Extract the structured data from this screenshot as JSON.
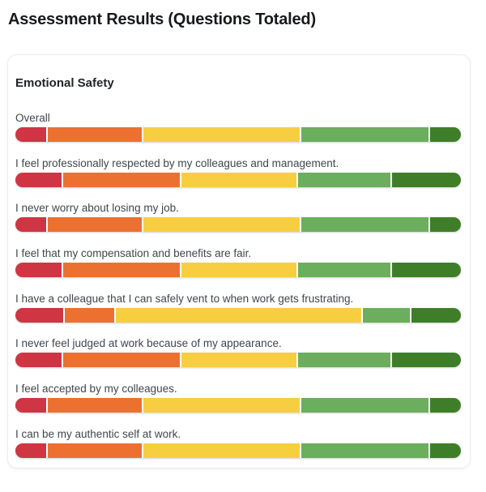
{
  "page_title": "Assessment Results (Questions Totaled)",
  "card": {
    "section_title": "Emotional Safety"
  },
  "chart_data": {
    "type": "bar",
    "variant": "horizontal-stacked-percentage",
    "title": "Assessment Results (Questions Totaled)",
    "group_label": "Emotional Safety",
    "legend_position": "none",
    "axis_labels": "none",
    "segment_keys": [
      "lowest",
      "low",
      "medium",
      "high",
      "highest"
    ],
    "colors": [
      "#cf3542",
      "#ec7131",
      "#f6ce40",
      "#6aae5e",
      "#3e7e28"
    ],
    "rows": [
      {
        "label": "Overall",
        "values_pct": [
          7.0,
          21.4,
          35.7,
          28.9,
          7.0
        ]
      },
      {
        "label": "I feel professionally respected by my colleagues and management.",
        "values_pct": [
          10.5,
          26.5,
          26.2,
          21.2,
          15.6
        ]
      },
      {
        "label": "I never worry about losing my job.",
        "values_pct": [
          7.0,
          21.4,
          35.7,
          28.9,
          7.0
        ]
      },
      {
        "label": "I feel that my compensation and benefits are fair.",
        "values_pct": [
          10.5,
          26.5,
          26.2,
          21.2,
          15.6
        ]
      },
      {
        "label": "I have a colleague that I can safely vent to when work gets frustrating.",
        "values_pct": [
          10.8,
          11.4,
          55.8,
          10.8,
          11.2
        ]
      },
      {
        "label": "I never feel judged at work because of my appearance.",
        "values_pct": [
          10.5,
          26.5,
          26.2,
          21.2,
          15.6
        ]
      },
      {
        "label": "I feel accepted by my colleagues.",
        "values_pct": [
          7.0,
          21.4,
          35.7,
          28.9,
          7.0
        ]
      },
      {
        "label": "I can be my authentic self at work.",
        "values_pct": [
          7.0,
          21.4,
          35.7,
          28.9,
          7.0
        ]
      }
    ]
  }
}
